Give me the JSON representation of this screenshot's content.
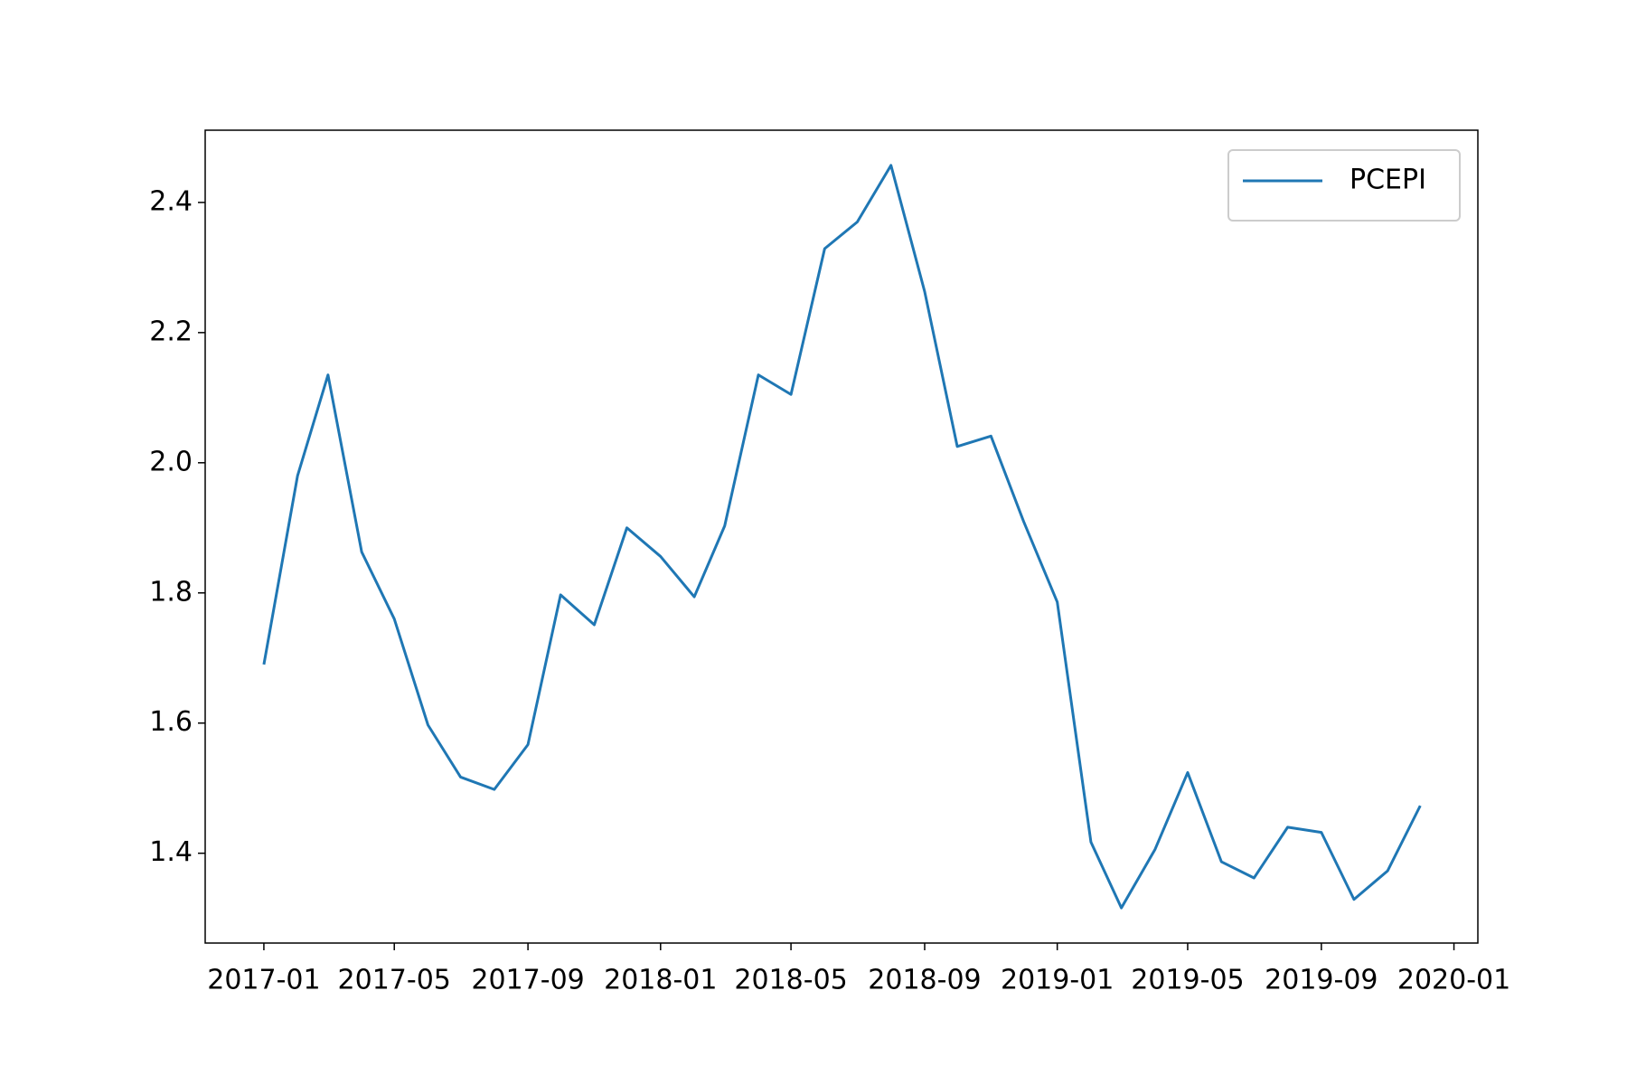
{
  "chart_data": {
    "type": "line",
    "x": [
      "2017-01",
      "2017-02",
      "2017-03",
      "2017-04",
      "2017-05",
      "2017-06",
      "2017-07",
      "2017-08",
      "2017-09",
      "2017-10",
      "2017-11",
      "2017-12",
      "2018-01",
      "2018-02",
      "2018-03",
      "2018-04",
      "2018-05",
      "2018-06",
      "2018-07",
      "2018-08",
      "2018-09",
      "2018-10",
      "2018-11",
      "2018-12",
      "2019-01",
      "2019-02",
      "2019-03",
      "2019-04",
      "2019-05",
      "2019-06",
      "2019-07",
      "2019-08",
      "2019-09",
      "2019-10",
      "2019-11",
      "2019-12"
    ],
    "series": [
      {
        "name": "PCEPI",
        "color": "#1f77b4",
        "values": [
          1.69,
          1.98,
          2.135,
          1.863,
          1.76,
          1.597,
          1.517,
          1.498,
          1.567,
          1.797,
          1.751,
          1.9,
          1.856,
          1.794,
          1.903,
          2.135,
          2.105,
          2.329,
          2.37,
          2.457,
          2.263,
          2.025,
          2.041,
          1.91,
          1.786,
          1.417,
          1.316,
          1.406,
          1.524,
          1.387,
          1.362,
          1.44,
          1.432,
          1.329,
          1.373,
          1.473
        ]
      }
    ],
    "xlim": [
      "2016-11-08",
      "2020-01-23"
    ],
    "xticks": [
      "2017-01",
      "2017-05",
      "2017-09",
      "2018-01",
      "2018-05",
      "2018-09",
      "2019-01",
      "2019-05",
      "2019-09",
      "2020-01"
    ],
    "ylim": [
      1.262,
      2.511
    ],
    "yticks": [
      1.4,
      1.6,
      1.8,
      {
        "value": 2,
        "label": "2.0"
      },
      2.2,
      2.4
    ],
    "legend": "upper right"
  }
}
